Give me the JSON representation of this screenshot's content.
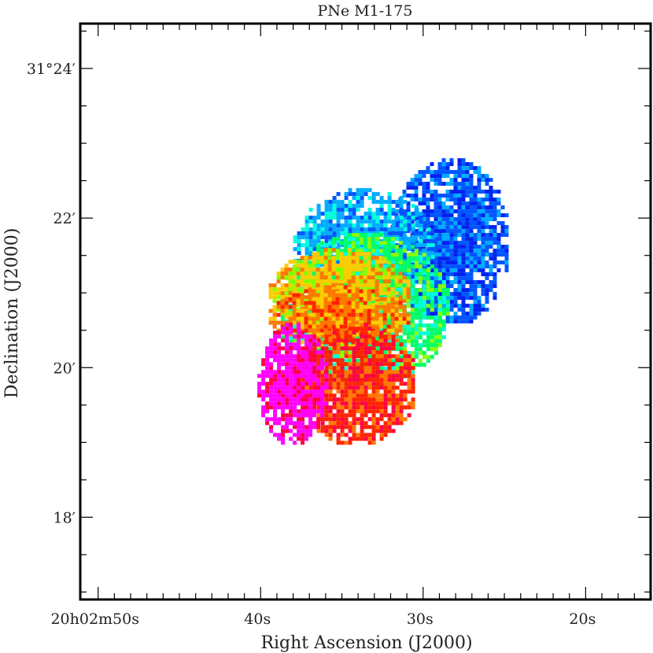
{
  "chart_data": {
    "type": "heatmap",
    "title": "PNe M1-175",
    "xlabel": "Right Ascension (J2000)",
    "ylabel": "Declination (J2000)",
    "x_ticks": [
      {
        "label": "20h02m50s",
        "value_s": 50
      },
      {
        "label": "40s",
        "value_s": 40
      },
      {
        "label": "30s",
        "value_s": 30
      },
      {
        "label": "20s",
        "value_s": 20
      }
    ],
    "y_ticks": [
      {
        "label": "31°24′",
        "value_arcmin": 24
      },
      {
        "label": "22′",
        "value_arcmin": 22
      },
      {
        "label": "20′",
        "value_arcmin": 20
      },
      {
        "label": "18′",
        "value_arcmin": 18
      }
    ],
    "xlim_s": [
      51.1,
      16.0
    ],
    "ylim_arcmin": [
      16.9,
      24.6
    ],
    "colorscale": [
      "#ff00ff",
      "#ff0044",
      "#ff2200",
      "#ff7700",
      "#ffcc00",
      "#88ff00",
      "#00ff66",
      "#00ffdd",
      "#00aaff",
      "#0055ff",
      "#0022ee"
    ],
    "regions": [
      {
        "name": "blue-northwest-lobe",
        "color_index": 9,
        "ra_s": [
          24.8,
          32.0
        ],
        "dec_arcmin": [
          20.6,
          22.8
        ]
      },
      {
        "name": "cyan-core",
        "color_index": 8,
        "ra_s": [
          29.5,
          38.0
        ],
        "dec_arcmin": [
          20.8,
          22.4
        ]
      },
      {
        "name": "green-band",
        "color_index": 6,
        "ra_s": [
          28.5,
          39.0
        ],
        "dec_arcmin": [
          19.8,
          21.8
        ]
      },
      {
        "name": "yellow-band",
        "color_index": 4,
        "ra_s": [
          31.0,
          39.5
        ],
        "dec_arcmin": [
          20.5,
          21.6
        ]
      },
      {
        "name": "orange-band",
        "color_index": 3,
        "ra_s": [
          31.0,
          39.5
        ],
        "dec_arcmin": [
          20.3,
          21.1
        ]
      },
      {
        "name": "red-south-lobe",
        "color_index": 2,
        "ra_s": [
          30.5,
          38.0
        ],
        "dec_arcmin": [
          19.0,
          20.6
        ]
      },
      {
        "name": "magenta-southeast-lobe",
        "color_index": 0,
        "ra_s": [
          36.0,
          40.2
        ],
        "dec_arcmin": [
          19.0,
          20.6
        ]
      }
    ],
    "grid": false,
    "legend": "none"
  }
}
